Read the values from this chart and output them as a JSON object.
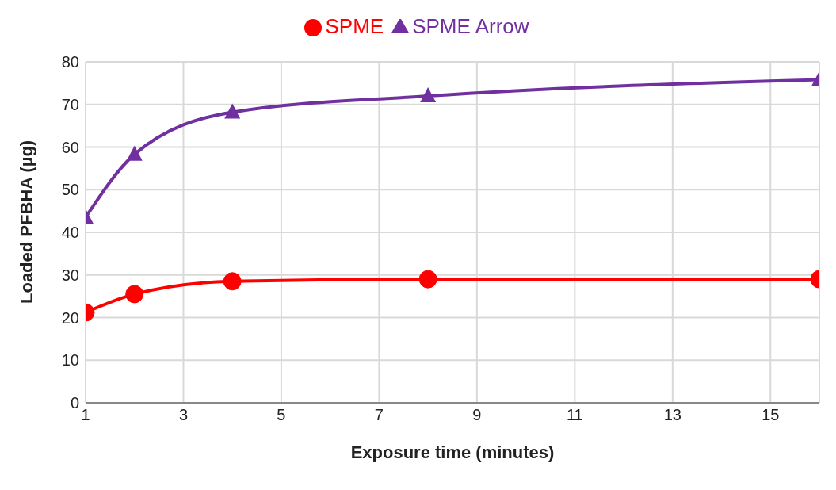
{
  "chart_data": {
    "type": "line",
    "xlabel": "Exposure time (minutes)",
    "ylabel": "Loaded PFBHA (µg)",
    "x": [
      1,
      2,
      4,
      8,
      16
    ],
    "series": [
      {
        "name": "SPME",
        "color": "#ff0000",
        "marker": "circle",
        "values": [
          21.2,
          25.5,
          28.5,
          29,
          29
        ]
      },
      {
        "name": "SPME Arrow",
        "color": "#7030a0",
        "marker": "triangle",
        "values": [
          43.5,
          58.3,
          68.2,
          72,
          75.8
        ]
      }
    ],
    "xlim": [
      1,
      16
    ],
    "xticks": [
      1,
      3,
      5,
      7,
      9,
      11,
      13,
      15
    ],
    "ylim": [
      0,
      80
    ],
    "yticks": [
      0,
      10,
      20,
      30,
      40,
      50,
      60,
      70,
      80
    ],
    "grid": true,
    "legend": "top",
    "line_style": "solid"
  }
}
